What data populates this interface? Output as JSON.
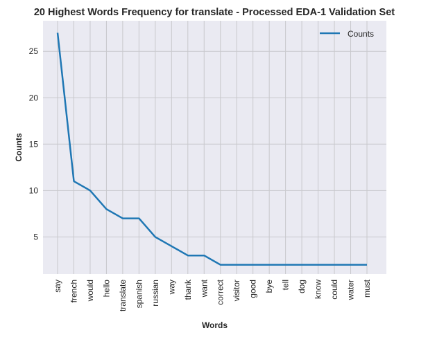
{
  "chart_data": {
    "type": "line",
    "title": "20 Highest Words Frequency for translate - Processed EDA-1 Validation Set",
    "xlabel": "Words",
    "ylabel": "Counts",
    "categories": [
      "say",
      "french",
      "would",
      "hello",
      "translate",
      "spanish",
      "russian",
      "way",
      "thank",
      "want",
      "correct",
      "visitor",
      "good",
      "bye",
      "tell",
      "dog",
      "know",
      "could",
      "water",
      "must"
    ],
    "series": [
      {
        "name": "Counts",
        "values": [
          27,
          11,
          10,
          8,
          7,
          7,
          5,
          4,
          3,
          3,
          2,
          2,
          2,
          2,
          2,
          2,
          2,
          2,
          2,
          2
        ],
        "color": "#1f77b4"
      }
    ],
    "ylim": [
      1.0,
      28.3
    ],
    "yticks": [
      5,
      10,
      15,
      20,
      25
    ],
    "grid": true,
    "legend": "top-right",
    "background": "#eaeaf2",
    "grid_color": "#c8c8cc"
  }
}
